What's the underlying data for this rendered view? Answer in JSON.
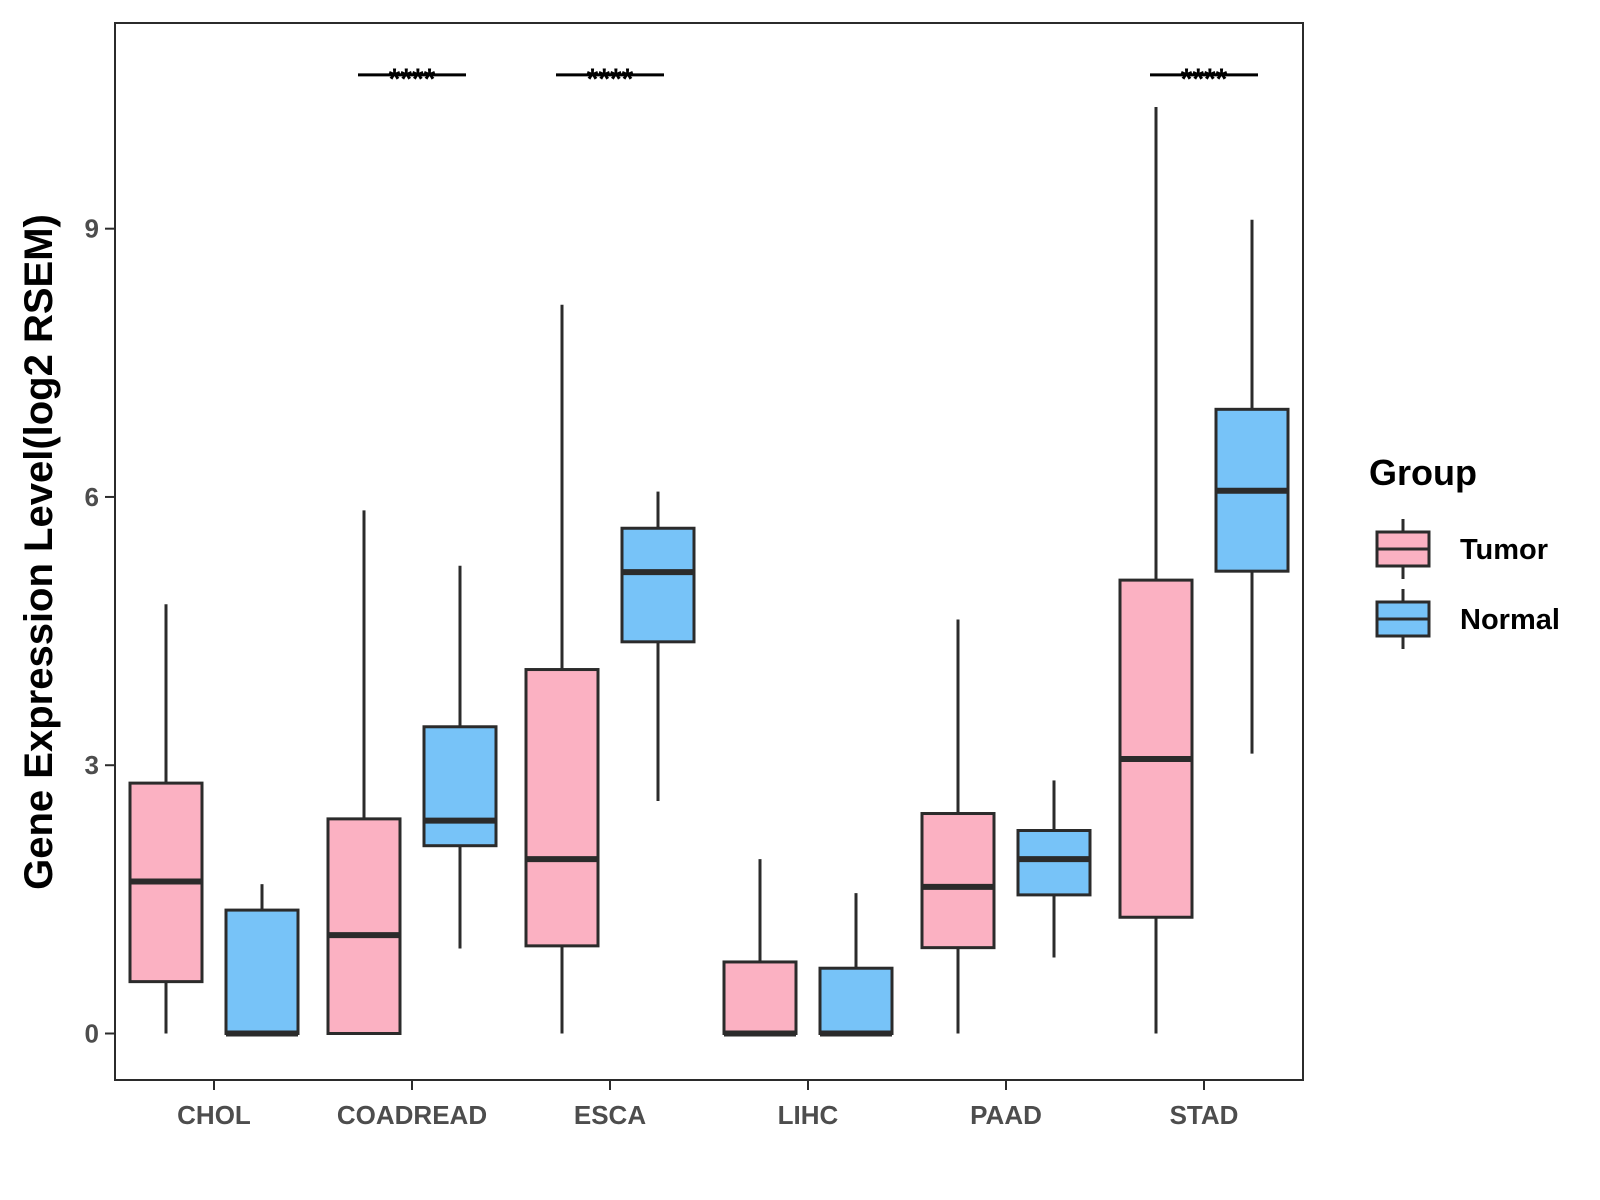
{
  "chart_data": {
    "type": "boxplot",
    "title": "",
    "xlabel": "",
    "ylabel": "Gene Expression Level(log2 RSEM)",
    "ylim": [
      -0.52,
      11.3
    ],
    "yticks": [
      0,
      3,
      6,
      9
    ],
    "yticklabels": [
      "0",
      "3",
      "6",
      "9"
    ],
    "categories": [
      "CHOL",
      "COADREAD",
      "ESCA",
      "LIHC",
      "PAAD",
      "STAD"
    ],
    "grid": false,
    "legend": {
      "title": "Group",
      "position": "right"
    },
    "series": [
      {
        "name": "Tumor",
        "color": "#FBB1C2",
        "boxes": [
          {
            "category": "CHOL",
            "min": 0.0,
            "q1": 0.58,
            "median": 1.7,
            "q3": 2.8,
            "max": 4.8
          },
          {
            "category": "COADREAD",
            "min": 0.0,
            "q1": 0.0,
            "median": 1.1,
            "q3": 2.4,
            "max": 5.85
          },
          {
            "category": "ESCA",
            "min": 0.0,
            "q1": 0.98,
            "median": 1.95,
            "q3": 4.07,
            "max": 8.15
          },
          {
            "category": "LIHC",
            "min": 0.0,
            "q1": 0.0,
            "median": 0.0,
            "q3": 0.8,
            "max": 1.95
          },
          {
            "category": "PAAD",
            "min": 0.0,
            "q1": 0.96,
            "median": 1.64,
            "q3": 2.46,
            "max": 4.63
          },
          {
            "category": "STAD",
            "min": 0.0,
            "q1": 1.3,
            "median": 3.07,
            "q3": 5.07,
            "max": 10.36
          }
        ]
      },
      {
        "name": "Normal",
        "color": "#77C3F8",
        "boxes": [
          {
            "category": "CHOL",
            "min": 0.0,
            "q1": 0.0,
            "median": 0.0,
            "q3": 1.38,
            "max": 1.67
          },
          {
            "category": "COADREAD",
            "min": 0.95,
            "q1": 2.1,
            "median": 2.38,
            "q3": 3.43,
            "max": 5.23
          },
          {
            "category": "ESCA",
            "min": 2.6,
            "q1": 4.38,
            "median": 5.16,
            "q3": 5.65,
            "max": 6.06
          },
          {
            "category": "LIHC",
            "min": 0.0,
            "q1": 0.0,
            "median": 0.0,
            "q3": 0.73,
            "max": 1.57
          },
          {
            "category": "PAAD",
            "min": 0.85,
            "q1": 1.55,
            "median": 1.95,
            "q3": 2.27,
            "max": 2.83
          },
          {
            "category": "STAD",
            "min": 3.13,
            "q1": 5.17,
            "median": 6.07,
            "q3": 6.98,
            "max": 9.1
          }
        ]
      }
    ],
    "annotations": [
      {
        "category": "COADREAD",
        "text": "****",
        "y": 10.72
      },
      {
        "category": "ESCA",
        "text": "****",
        "y": 10.72
      },
      {
        "category": "STAD",
        "text": "****",
        "y": 10.72
      }
    ]
  }
}
